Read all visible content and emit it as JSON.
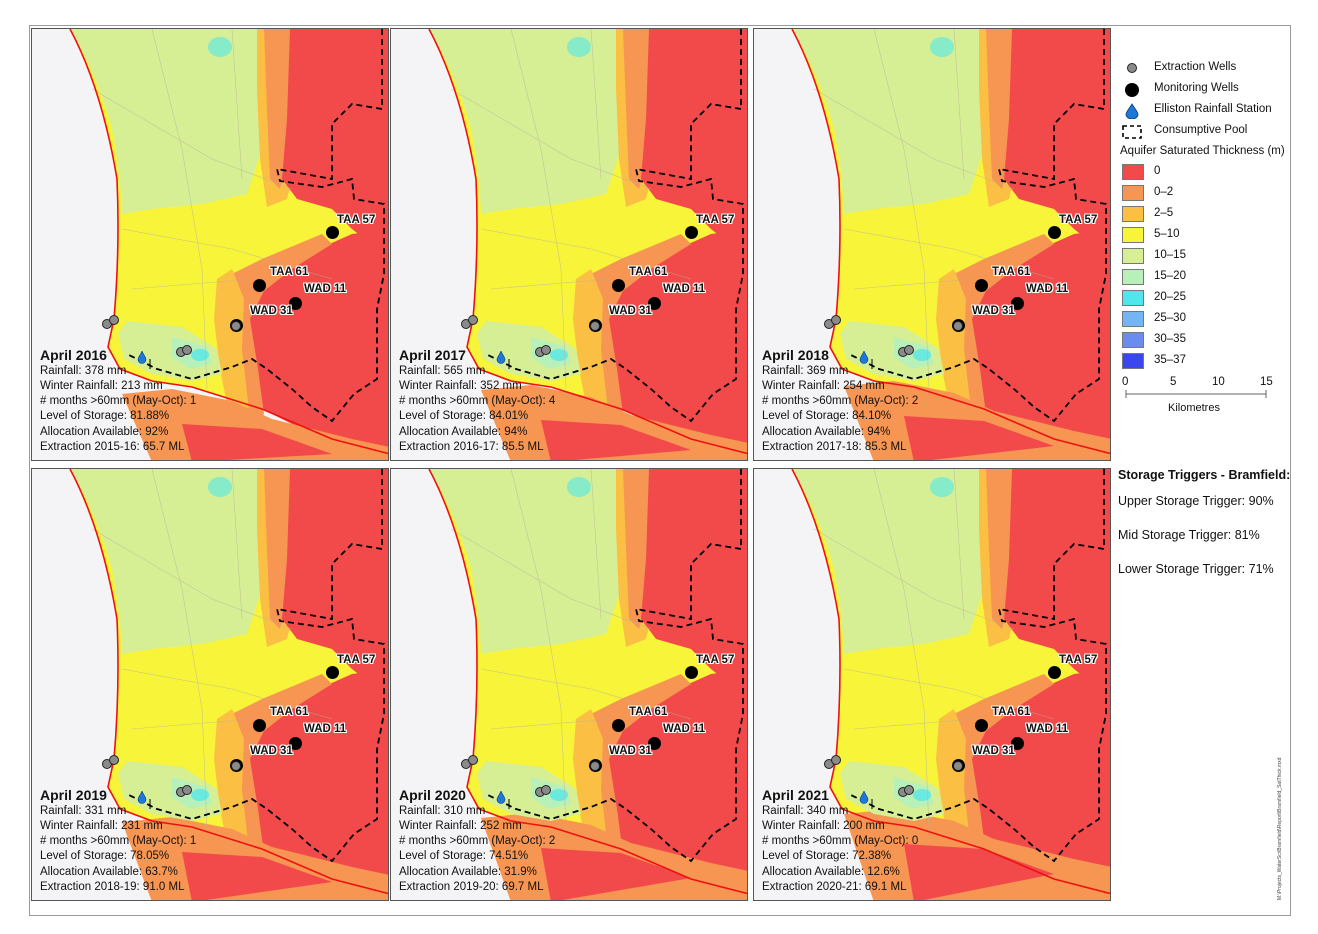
{
  "panels": [
    {
      "title": "April 2016",
      "lines": [
        "Rainfall: 378 mm",
        "Winter Rainfall: 213 mm",
        "# months >60mm (May-Oct): 1",
        "Level of Storage: 81.88%",
        "Allocation Available: 92%",
        "Extraction 2015-16: 65.7 ML"
      ]
    },
    {
      "title": "April 2017",
      "lines": [
        "Rainfall: 565 mm",
        "Winter Rainfall: 352 mm",
        "# months >60mm (May-Oct): 4",
        "Level of Storage: 84.01%",
        "Allocation Available: 94%",
        "Extraction 2016-17: 85.5 ML"
      ]
    },
    {
      "title": "April 2018",
      "lines": [
        "Rainfall: 369 mm",
        "Winter Rainfall: 254 mm",
        "# months >60mm (May-Oct): 2",
        "Level of Storage: 84.10%",
        "Allocation Available: 94%",
        "Extraction 2017-18: 85.3 ML"
      ]
    },
    {
      "title": "April 2019",
      "lines": [
        "Rainfall: 331 mm",
        "Winter Rainfall: 231 mm",
        "# months >60mm (May-Oct): 1",
        "Level of Storage: 78.05%",
        "Allocation Available: 63.7%",
        "Extraction 2018-19: 91.0 ML"
      ]
    },
    {
      "title": "April 2020",
      "lines": [
        "Rainfall: 310 mm",
        "Winter Rainfall: 252 mm",
        "# months >60mm (May-Oct): 2",
        "Level of Storage: 74.51%",
        "Allocation Available: 31.9%",
        "Extraction 2019-20: 69.7 ML"
      ]
    },
    {
      "title": "April 2021",
      "lines": [
        "Rainfall: 340 mm",
        "Winter Rainfall: 200 mm",
        "# months >60mm (May-Oct): 0",
        "Level of Storage: 72.38%",
        "Allocation Available: 12.6%",
        "Extraction 2020-21: 69.1 ML"
      ]
    }
  ],
  "well_labels": {
    "taa57": "TAA 57",
    "taa61": "TAA 61",
    "wad11": "WAD 11",
    "wad31": "WAD 31"
  },
  "legend": {
    "symbols": [
      {
        "label": "Extraction Wells",
        "icon": "extraction-well-icon"
      },
      {
        "label": "Monitoring Wells",
        "icon": "monitoring-well-icon"
      },
      {
        "label": "Elliston Rainfall Station",
        "icon": "rainfall-drop-icon"
      },
      {
        "label": "Consumptive Pool",
        "icon": "dashed-boundary-icon"
      }
    ],
    "thickness_title": "Aquifer Saturated Thickness (m)",
    "classes": [
      {
        "label": "0",
        "color": "#f24a4a"
      },
      {
        "label": "0–2",
        "color": "#f79552"
      },
      {
        "label": "2–5",
        "color": "#fbbf44"
      },
      {
        "label": "5–10",
        "color": "#f7f43a"
      },
      {
        "label": "10–15",
        "color": "#d6ef95"
      },
      {
        "label": "15–20",
        "color": "#b7f0b8"
      },
      {
        "label": "20–25",
        "color": "#4fe7ec"
      },
      {
        "label": "25–30",
        "color": "#74b5f2"
      },
      {
        "label": "30–35",
        "color": "#6b8bef"
      },
      {
        "label": "35–37",
        "color": "#3a47ef"
      }
    ],
    "scale_ticks": [
      "0",
      "5",
      "10",
      "15"
    ],
    "scale_unit": "Kilometres"
  },
  "triggers": {
    "title": "Storage Triggers - Bramfield:",
    "items": [
      "Upper Storage Trigger: 90%",
      "Mid Storage Trigger: 81%",
      "Lower Storage Trigger: 71%"
    ]
  },
  "side_note": "M:\\Projects_WaterSci\\Bramfield\\Report\\Bramfield_SatThick.mxd"
}
